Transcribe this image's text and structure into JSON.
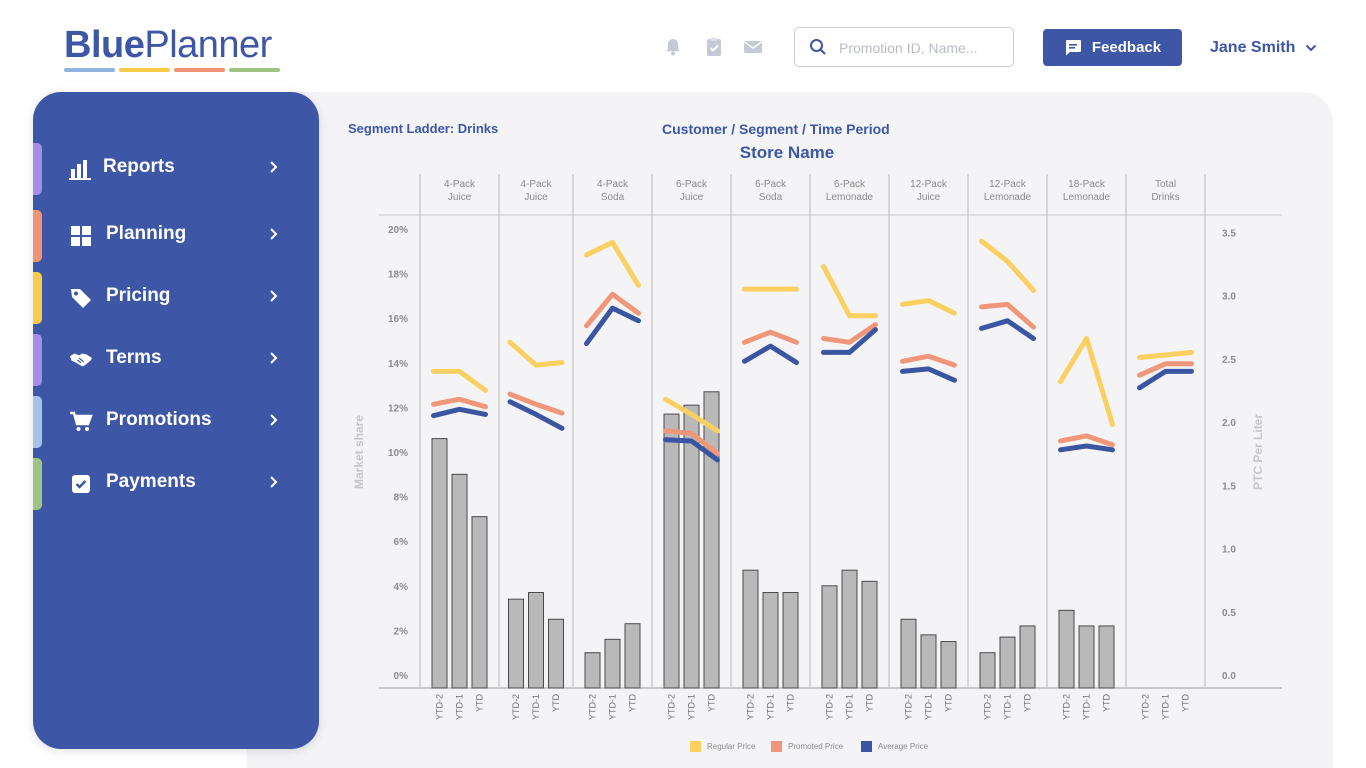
{
  "logo": {
    "part1": "Blue",
    "part2": "Planner",
    "bar_colors": [
      "#8fb4df",
      "#f8cc48",
      "#ef9372",
      "#9ec47f"
    ]
  },
  "header": {
    "icons": [
      "bell-icon",
      "clipboard-check-icon",
      "mail-icon"
    ],
    "search": {
      "placeholder": "Promotion ID, Name..."
    },
    "feedback_label": "Feedback",
    "user_name": "Jane Smith"
  },
  "sidebar": {
    "items": [
      {
        "label": "Reports",
        "icon": "bar-chart-icon",
        "accent": "#a48de6"
      },
      {
        "label": "Planning",
        "icon": "grid-icon",
        "accent": "#ef9372"
      },
      {
        "label": "Pricing",
        "icon": "tag-icon",
        "accent": "#f8cc48"
      },
      {
        "label": "Terms",
        "icon": "handshake-icon",
        "accent": "#a48de6"
      },
      {
        "label": "Promotions",
        "icon": "cart-icon",
        "accent": "#a7c3e6"
      },
      {
        "label": "Payments",
        "icon": "checkbox-icon",
        "accent": "#9ec47f"
      }
    ]
  },
  "report": {
    "segment_label": "Segment Ladder: Drinks",
    "context_label": "Customer / Segment / Time Period",
    "store_label": "Store Name"
  },
  "colors": {
    "accent": "#3d56a6",
    "regular": "#fbd061",
    "promoted": "#f0977a",
    "average": "#3a55a2",
    "bar": "#b9b9b9"
  },
  "chart_data": {
    "type": "bar",
    "groups": [
      "4-Pack Juice",
      "4-Pack Juice",
      "4-Pack Soda",
      "6-Pack Juice",
      "6-Pack Soda",
      "6-Pack Lemonade",
      "12-Pack Juice",
      "12-Pack Lemonade",
      "18-Pack Lemonade",
      "Total Drinks"
    ],
    "periods": [
      "YTD-2",
      "YTD-1",
      "YTD"
    ],
    "ylabel_left": "Market share",
    "ylabel_right": "PTC Per Liter",
    "ylim_left": [
      0,
      20
    ],
    "ylim_right": [
      0,
      3.5
    ],
    "yticks_left": [
      "20%",
      "18%",
      "16%",
      "14%",
      "12%",
      "10%",
      "8%",
      "6%",
      "4%",
      "2%",
      "0%"
    ],
    "yticks_right": [
      "3.5",
      "3.0",
      "2.5",
      "2.0",
      "1.5",
      "1.0",
      "0.5",
      "0.0"
    ],
    "grid": "vertical group separators",
    "legend_position": "bottom",
    "bars": [
      [
        10.6,
        9.0,
        7.1
      ],
      [
        3.4,
        3.7,
        2.5
      ],
      [
        1.0,
        1.6,
        2.3
      ],
      [
        11.7,
        12.1,
        12.7
      ],
      [
        4.7,
        3.7,
        3.7
      ],
      [
        4.0,
        4.7,
        4.2
      ],
      [
        2.5,
        1.8,
        1.5
      ],
      [
        1.0,
        1.7,
        2.2
      ],
      [
        2.9,
        2.2,
        2.2
      ],
      [
        null,
        null,
        null
      ]
    ],
    "series": [
      {
        "name": "Regular Price",
        "values": [
          [
            2.4,
            2.4,
            2.25
          ],
          [
            2.63,
            2.45,
            2.47
          ],
          [
            3.32,
            3.42,
            3.08
          ],
          [
            2.18,
            2.06,
            1.93
          ],
          [
            3.05,
            3.05,
            3.05
          ],
          [
            3.23,
            2.84,
            2.84
          ],
          [
            2.93,
            2.96,
            2.86
          ],
          [
            3.43,
            3.27,
            3.04
          ],
          [
            2.32,
            2.66,
            1.98
          ],
          [
            2.51,
            2.53,
            2.55
          ]
        ]
      },
      {
        "name": "Promoted Price",
        "values": [
          [
            2.14,
            2.18,
            2.12
          ],
          [
            2.22,
            2.14,
            2.07
          ],
          [
            2.76,
            3.01,
            2.86
          ],
          [
            1.93,
            1.91,
            1.75
          ],
          [
            2.63,
            2.71,
            2.63
          ],
          [
            2.66,
            2.63,
            2.77
          ],
          [
            2.48,
            2.52,
            2.45
          ],
          [
            2.91,
            2.93,
            2.75
          ],
          [
            1.85,
            1.89,
            1.82
          ],
          [
            2.37,
            2.46,
            2.46
          ]
        ]
      },
      {
        "name": "Average Price",
        "values": [
          [
            2.05,
            2.1,
            2.06
          ],
          [
            2.16,
            2.06,
            1.95
          ],
          [
            2.62,
            2.9,
            2.8
          ],
          [
            1.86,
            1.85,
            1.7
          ],
          [
            2.48,
            2.6,
            2.47
          ],
          [
            2.55,
            2.55,
            2.73
          ],
          [
            2.4,
            2.42,
            2.33
          ],
          [
            2.74,
            2.8,
            2.66
          ],
          [
            1.78,
            1.81,
            1.78
          ],
          [
            2.27,
            2.4,
            2.4
          ]
        ]
      }
    ]
  }
}
